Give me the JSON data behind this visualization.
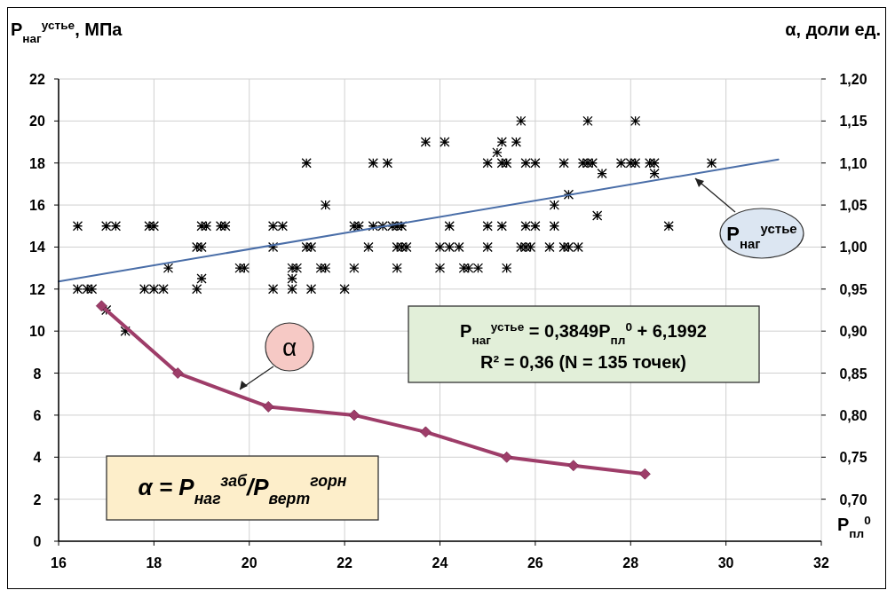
{
  "chart_data": {
    "type": "scatter",
    "xlabel": "P$_{пл}$$^{0}$",
    "ylabel": "P$_{наг}$$^{устье}$, МПа",
    "y2label": "α, доли ед.",
    "xlim": [
      16,
      32
    ],
    "xticks": [
      16,
      18,
      20,
      22,
      24,
      26,
      28,
      30,
      32
    ],
    "ylim": [
      0,
      22
    ],
    "yticks": [
      0,
      2,
      4,
      6,
      8,
      10,
      12,
      14,
      16,
      18,
      20,
      22
    ],
    "y2lim": [
      0.65,
      1.2
    ],
    "y2ticks": [
      {
        "value": 0.7,
        "label": "0,70"
      },
      {
        "value": 0.75,
        "label": "0,75"
      },
      {
        "value": 0.8,
        "label": "0,80"
      },
      {
        "value": 0.85,
        "label": "0,85"
      },
      {
        "value": 0.9,
        "label": "0,90"
      },
      {
        "value": 0.95,
        "label": "0,95"
      },
      {
        "value": 1.0,
        "label": "1,00"
      },
      {
        "value": 1.05,
        "label": "1,05"
      },
      {
        "value": 1.1,
        "label": "1,10"
      },
      {
        "value": 1.15,
        "label": "1,15"
      },
      {
        "value": 1.2,
        "label": "1,20"
      }
    ],
    "grid": true,
    "legend": false,
    "annotations": [
      "P$_{наг}$$^{устье}$ = 0,3849P$_{пл}$$^{0}$ + 6,1992",
      "R² = 0,36  (N = 135 точек)",
      "α = P$_{наг}$$^{заб}$/P$_{верт}$$^{горн}$"
    ],
    "series": [
      {
        "color": "#000000",
        "marker": "cross",
        "x": [
          16.4,
          17.0,
          17.2,
          17.9,
          18.0,
          19.0,
          19.1,
          19.4,
          19.5,
          20.5,
          20.7,
          22.2,
          22.3,
          22.6,
          22.8,
          23.0,
          23.1,
          23.2,
          24.2,
          25.0,
          25.3,
          25.8,
          26.0,
          26.4,
          28.8,
          18.9,
          19.0,
          20.5,
          21.2,
          21.3,
          22.5,
          23.1,
          23.2,
          23.3,
          24.0,
          24.2,
          24.4,
          25.0,
          25.7,
          25.8,
          25.9,
          26.3,
          26.6,
          26.7,
          26.9,
          18.3,
          19.8,
          19.9,
          20.9,
          21.0,
          21.5,
          21.6,
          22.2,
          23.1,
          24.0,
          24.5,
          24.6,
          24.8,
          25.4,
          19.0,
          20.9,
          16.4,
          16.6,
          16.7,
          17.8,
          18.0,
          18.2,
          18.9,
          20.5,
          20.9,
          21.3,
          22.0,
          17.0,
          17.4,
          21.6,
          26.4,
          26.7,
          21.2,
          22.6,
          22.9,
          25.0,
          25.3,
          25.4,
          25.8,
          26.0,
          26.6,
          27.0,
          27.1,
          27.2,
          27.8,
          28.0,
          28.1,
          28.4,
          28.5,
          29.7,
          27.4,
          28.5,
          25.2,
          23.7,
          24.1,
          25.3,
          25.6,
          25.7,
          27.1,
          28.1,
          27.3
        ],
        "values": [
          15,
          15,
          15,
          15,
          15,
          15,
          15,
          15,
          15,
          15,
          15,
          15,
          15,
          15,
          15,
          15,
          15,
          15,
          15,
          15,
          15,
          15,
          15,
          15,
          15,
          14,
          14,
          14,
          14,
          14,
          14,
          14,
          14,
          14,
          14,
          14,
          14,
          14,
          14,
          14,
          14,
          14,
          14,
          14,
          14,
          13,
          13,
          13,
          13,
          13,
          13,
          13,
          13,
          13,
          13,
          13,
          13,
          13,
          13,
          12.5,
          12.5,
          12,
          12,
          12,
          12,
          12,
          12,
          12,
          12,
          12,
          12,
          12,
          11,
          10,
          16,
          16,
          16.5,
          18,
          18,
          18,
          18,
          18,
          18,
          18,
          18,
          18,
          18,
          18,
          18,
          18,
          18,
          18,
          18,
          18,
          18,
          17.5,
          17.5,
          18.5,
          19,
          19,
          19,
          19,
          20,
          20,
          20,
          15.5
        ]
      },
      {
        "type": "line",
        "name": "P$_{наг}$$^{устье}$",
        "color": "#4a6ea8",
        "marker": "none",
        "x": [
          16,
          31.1
        ],
        "values": [
          12.36,
          18.17
        ]
      },
      {
        "type": "line",
        "name": "α",
        "axis": "y2",
        "color": "#9e3d69",
        "marker": "diamond",
        "x": [
          16.9,
          18.5,
          20.4,
          22.2,
          23.7,
          25.4,
          26.8,
          28.3
        ],
        "values": [
          0.93,
          0.85,
          0.81,
          0.8,
          0.78,
          0.75,
          0.74,
          0.73
        ]
      }
    ]
  }
}
